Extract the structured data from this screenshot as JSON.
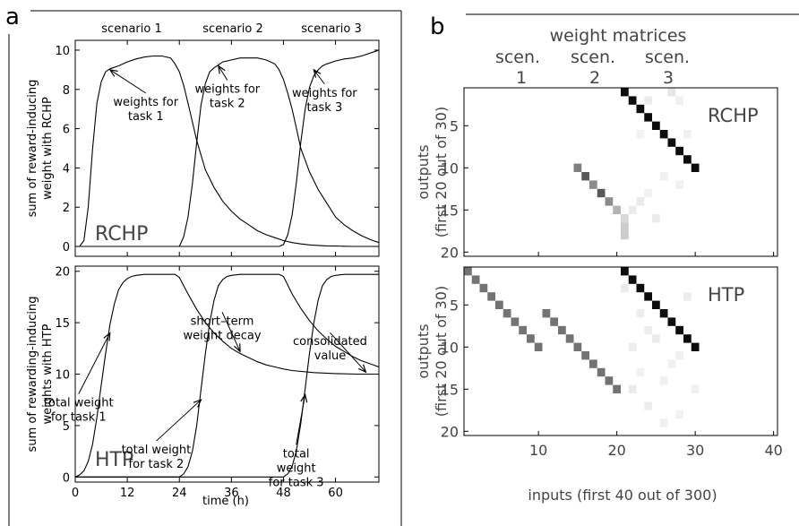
{
  "panel_a": {
    "label": "a",
    "scenario_labels": [
      "scenario 1",
      "scenario 2",
      "scenario 3"
    ],
    "xlabel": "time (h)",
    "xticks": [
      0,
      12,
      24,
      36,
      48,
      60
    ]
  },
  "panel_b": {
    "label": "b",
    "title": "weight matrices",
    "scen_labels": [
      "scen.",
      "scen.",
      "scen."
    ],
    "scen_numbers": [
      "1",
      "2",
      "3"
    ],
    "xlabel": "inputs (first 40 out of 300)",
    "xticks": [
      10,
      20,
      30,
      40
    ]
  },
  "chart_data": [
    {
      "type": "line",
      "panel": "a-top",
      "ylabel_line1": "sum of reward-inducing",
      "ylabel_line2": "weight with RCHP",
      "tag": "RCHP",
      "xlim": [
        0,
        70
      ],
      "ylim": [
        -0.5,
        10.5
      ],
      "yticks": [
        0,
        2,
        4,
        6,
        8,
        10
      ],
      "series": [
        {
          "x": [
            0,
            1,
            2,
            3,
            4,
            5,
            6,
            7,
            8,
            10,
            12,
            14,
            16,
            18,
            20,
            22,
            23,
            24,
            25,
            26,
            28,
            30,
            32,
            34,
            36,
            38,
            40,
            42,
            44,
            46,
            48,
            50,
            52,
            54,
            56,
            58,
            60,
            62,
            64,
            66,
            68,
            70
          ],
          "values": [
            0,
            0,
            0.3,
            2.0,
            5.0,
            7.3,
            8.4,
            8.9,
            9.05,
            9.2,
            9.4,
            9.55,
            9.65,
            9.7,
            9.7,
            9.6,
            9.3,
            8.9,
            8.2,
            7.3,
            5.4,
            3.9,
            3.0,
            2.3,
            1.8,
            1.4,
            1.1,
            0.8,
            0.6,
            0.45,
            0.3,
            0.2,
            0.13,
            0.08,
            0.05,
            0.03,
            0.02,
            0.01,
            0,
            0,
            0,
            0
          ]
        },
        {
          "x": [
            0,
            23,
            24,
            25,
            26,
            27,
            28,
            29,
            30,
            31,
            32,
            34,
            36,
            38,
            40,
            42,
            44,
            46,
            47,
            48,
            49,
            50,
            51,
            52,
            54,
            56,
            58,
            60,
            62,
            64,
            66,
            68,
            70
          ],
          "values": [
            0,
            0,
            0,
            0.5,
            1.5,
            3.2,
            5.3,
            7.2,
            8.3,
            8.9,
            9.1,
            9.4,
            9.5,
            9.6,
            9.6,
            9.6,
            9.5,
            9.3,
            9.0,
            8.5,
            7.8,
            7.0,
            6.0,
            5.0,
            3.8,
            2.9,
            2.2,
            1.5,
            1.1,
            0.8,
            0.55,
            0.35,
            0.2
          ]
        },
        {
          "x": [
            0,
            47,
            48,
            49,
            50,
            51,
            52,
            53,
            54,
            55,
            56,
            57,
            58,
            60,
            62,
            64,
            66,
            68,
            70
          ],
          "values": [
            0,
            0,
            0.1,
            0.6,
            1.6,
            3.3,
            5.3,
            7.0,
            8.1,
            8.7,
            9.0,
            9.2,
            9.3,
            9.45,
            9.55,
            9.6,
            9.7,
            9.85,
            10.0
          ]
        }
      ],
      "annotations": [
        {
          "text_line1": "weights for",
          "text_line2": "task 1",
          "x": 8,
          "y": 9.0
        },
        {
          "text_line1": "weights for",
          "text_line2": "task 2",
          "x": 33,
          "y": 9.2
        },
        {
          "text_line1": "weights for",
          "text_line2": "task 3",
          "x": 55,
          "y": 9.0
        }
      ]
    },
    {
      "type": "line",
      "panel": "a-bottom",
      "ylabel_line1": "sum of rewarding-inducing",
      "ylabel_line2": "weights with HTP",
      "tag": "HTP",
      "xlim": [
        0,
        70
      ],
      "ylim": [
        -0.5,
        20.5
      ],
      "yticks": [
        0,
        5,
        10,
        15,
        20
      ],
      "series": [
        {
          "x": [
            0,
            1,
            2,
            3,
            4,
            5,
            6,
            7,
            8,
            9,
            10,
            11,
            12,
            13,
            14,
            16,
            18,
            20,
            22,
            23,
            24,
            26,
            28,
            30,
            32,
            34,
            36,
            38,
            40,
            42,
            44,
            46,
            48,
            50,
            55,
            60,
            65,
            70
          ],
          "values": [
            0,
            0.2,
            0.6,
            1.5,
            3.2,
            5.8,
            9.0,
            12.0,
            14.8,
            16.8,
            18.2,
            18.9,
            19.3,
            19.5,
            19.6,
            19.7,
            19.7,
            19.7,
            19.7,
            19.7,
            19.4,
            17.8,
            16.3,
            15.0,
            14.0,
            13.2,
            12.5,
            12.0,
            11.6,
            11.2,
            10.9,
            10.7,
            10.5,
            10.35,
            10.15,
            10.05,
            10.0,
            10.0
          ]
        },
        {
          "x": [
            0,
            23,
            24,
            25,
            26,
            27,
            28,
            29,
            30,
            31,
            32,
            33,
            34,
            35,
            36,
            38,
            40,
            42,
            44,
            46,
            47,
            48,
            50,
            52,
            54,
            56,
            58,
            60,
            62,
            64,
            66,
            68,
            70
          ],
          "values": [
            0,
            0,
            0,
            0.3,
            1.0,
            2.5,
            5.0,
            8.5,
            12.0,
            15.0,
            17.2,
            18.6,
            19.2,
            19.5,
            19.6,
            19.7,
            19.7,
            19.7,
            19.7,
            19.7,
            19.7,
            19.5,
            17.8,
            16.4,
            15.2,
            14.2,
            13.4,
            12.7,
            12.2,
            11.7,
            11.3,
            11.0,
            10.7
          ]
        },
        {
          "x": [
            0,
            47,
            48,
            49,
            50,
            51,
            52,
            53,
            54,
            55,
            56,
            57,
            58,
            59,
            60,
            62,
            64,
            66,
            68,
            70
          ],
          "values": [
            0,
            0,
            0,
            0.3,
            1.0,
            2.6,
            5.2,
            8.6,
            12.0,
            15.0,
            17.2,
            18.6,
            19.2,
            19.5,
            19.6,
            19.7,
            19.7,
            19.7,
            19.7,
            19.7
          ]
        }
      ],
      "annotations": [
        {
          "text_line1": "total weight",
          "text_line2": "for task 1",
          "x": 8,
          "y": 14.0
        },
        {
          "text_line1": "short–term",
          "text_line2": "weight decay",
          "x": 38,
          "y": 12.2
        },
        {
          "text_line1": "consolidated",
          "text_line2": "value",
          "x": 67,
          "y": 10.2
        },
        {
          "text_line1": "total weight",
          "text_line2": "for task 2",
          "x": 29,
          "y": 7.5
        },
        {
          "text_line1": "total",
          "text_line2": "weight",
          "text_line3": "for task 3",
          "x": 53,
          "y": 8.0
        }
      ]
    },
    {
      "type": "heatmap",
      "panel": "b-top",
      "tag": "RCHP",
      "ylabel_line1": "outputs",
      "ylabel_line2": "(first 20 out of 30)",
      "xlim": [
        0.5,
        40.5
      ],
      "ylim": [
        0.5,
        20.5
      ],
      "yticks": [
        5,
        10,
        15,
        20
      ],
      "cells": [
        [
          21,
          1,
          0.95
        ],
        [
          22,
          2,
          0.95
        ],
        [
          23,
          3,
          0.95
        ],
        [
          24,
          4,
          0.95
        ],
        [
          25,
          5,
          0.95
        ],
        [
          26,
          6,
          0.95
        ],
        [
          27,
          7,
          0.95
        ],
        [
          28,
          8,
          0.95
        ],
        [
          29,
          9,
          0.95
        ],
        [
          30,
          10,
          0.95
        ],
        [
          15,
          10,
          0.5
        ],
        [
          16,
          11,
          0.65
        ],
        [
          17,
          12,
          0.45
        ],
        [
          18,
          13,
          0.65
        ],
        [
          19,
          14,
          0.45
        ],
        [
          20,
          15,
          0.3
        ],
        [
          21,
          16,
          0.15
        ],
        [
          21,
          17,
          0.2
        ],
        [
          21,
          18,
          0.2
        ],
        [
          22,
          15,
          0.08
        ],
        [
          23,
          14,
          0.08
        ],
        [
          25,
          16,
          0.08
        ],
        [
          24,
          2,
          0.08
        ],
        [
          27,
          1,
          0.1
        ],
        [
          28,
          2,
          0.06
        ],
        [
          29,
          6,
          0.06
        ],
        [
          26,
          11,
          0.06
        ],
        [
          24,
          13,
          0.05
        ],
        [
          28,
          12,
          0.06
        ],
        [
          23,
          6,
          0.05
        ]
      ]
    },
    {
      "type": "heatmap",
      "panel": "b-bottom",
      "tag": "HTP",
      "ylabel_line1": "outputs",
      "ylabel_line2": "(first 20 out of 30)",
      "xlim": [
        0.5,
        40.5
      ],
      "ylim": [
        0.5,
        20.5
      ],
      "yticks": [
        5,
        10,
        15,
        20
      ],
      "xticks": [
        10,
        20,
        30,
        40
      ],
      "cells": [
        [
          1,
          1,
          0.55
        ],
        [
          2,
          2,
          0.55
        ],
        [
          3,
          3,
          0.55
        ],
        [
          4,
          4,
          0.55
        ],
        [
          5,
          5,
          0.55
        ],
        [
          6,
          6,
          0.55
        ],
        [
          7,
          7,
          0.55
        ],
        [
          8,
          8,
          0.55
        ],
        [
          9,
          9,
          0.55
        ],
        [
          10,
          10,
          0.55
        ],
        [
          11,
          6,
          0.55
        ],
        [
          12,
          7,
          0.55
        ],
        [
          13,
          8,
          0.55
        ],
        [
          14,
          9,
          0.55
        ],
        [
          15,
          10,
          0.55
        ],
        [
          16,
          11,
          0.55
        ],
        [
          17,
          12,
          0.55
        ],
        [
          18,
          13,
          0.55
        ],
        [
          19,
          14,
          0.55
        ],
        [
          20,
          15,
          0.55
        ],
        [
          21,
          1,
          0.95
        ],
        [
          22,
          2,
          0.95
        ],
        [
          23,
          3,
          0.95
        ],
        [
          24,
          4,
          0.95
        ],
        [
          25,
          5,
          0.95
        ],
        [
          26,
          6,
          0.95
        ],
        [
          27,
          7,
          0.95
        ],
        [
          28,
          8,
          0.95
        ],
        [
          29,
          9,
          0.95
        ],
        [
          30,
          10,
          0.95
        ],
        [
          21,
          3,
          0.08
        ],
        [
          23,
          6,
          0.07
        ],
        [
          25,
          9,
          0.08
        ],
        [
          27,
          12,
          0.06
        ],
        [
          22,
          15,
          0.08
        ],
        [
          24,
          17,
          0.07
        ],
        [
          26,
          14,
          0.06
        ],
        [
          28,
          18,
          0.05
        ],
        [
          29,
          4,
          0.07
        ],
        [
          30,
          15,
          0.06
        ],
        [
          22,
          10,
          0.07
        ],
        [
          26,
          19,
          0.06
        ],
        [
          24,
          8,
          0.07
        ],
        [
          28,
          11,
          0.06
        ],
        [
          23,
          13,
          0.05
        ]
      ]
    }
  ]
}
